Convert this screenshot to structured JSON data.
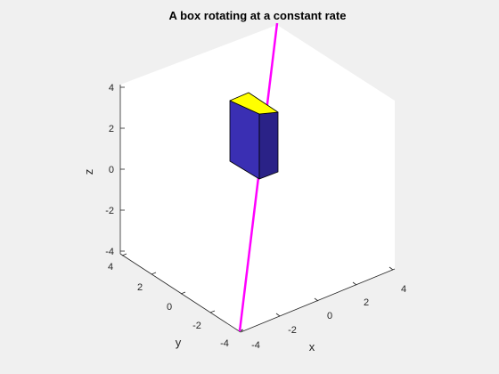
{
  "figure": {
    "title": "A box rotating at a constant rate",
    "colors": {
      "background": "#f0f0f0",
      "axes_face": "#ffffff",
      "axis_line": "#262626",
      "rotation_axis": "#ff00ff",
      "box_top": "#ffff00",
      "box_sides": "#3a2fb3",
      "box_right_side": "#2a2287"
    }
  },
  "chart_data": {
    "type": "3d-surface",
    "title": "A box rotating at a constant rate",
    "xlabel": "x",
    "ylabel": "y",
    "zlabel": "z",
    "xlim": [
      -4,
      4
    ],
    "ylim": [
      -4,
      4
    ],
    "zlim": [
      -4,
      4
    ],
    "x_ticks": [
      "-4",
      "-2",
      "0",
      "2",
      "4"
    ],
    "y_ticks": [
      "-4",
      "-2",
      "0",
      "2",
      "4"
    ],
    "z_ticks": [
      "-4",
      "-2",
      "0",
      "2",
      "4"
    ],
    "grid": false,
    "objects": [
      {
        "name": "rotation axis",
        "kind": "line",
        "color": "#ff00ff"
      },
      {
        "name": "box",
        "kind": "box",
        "top_color": "#ffff00",
        "side_color": "#3a2fb3"
      }
    ]
  }
}
